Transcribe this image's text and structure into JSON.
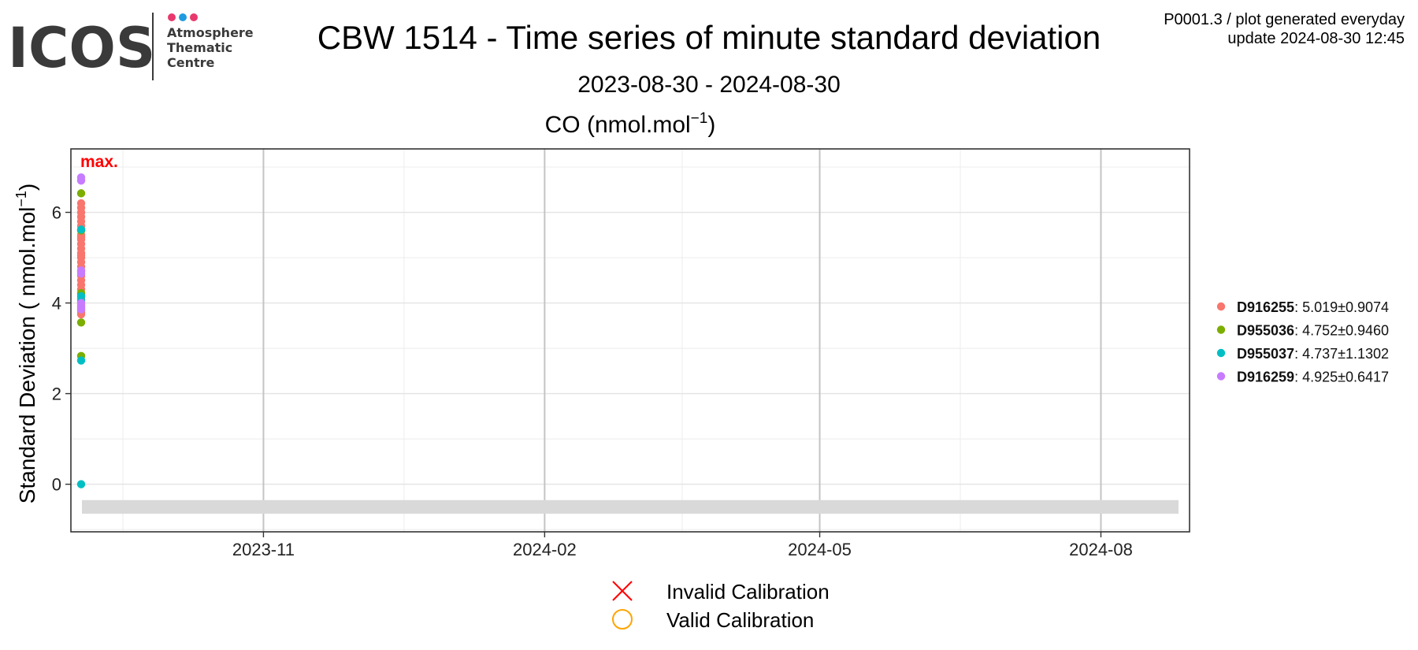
{
  "logo": {
    "wordmark": "ICOS",
    "lines": [
      "Atmosphere",
      "Thematic",
      "Centre"
    ],
    "dot_colors": [
      "#e8386d",
      "#1f9be0",
      "#e8386d"
    ],
    "wordmark_color": "#3a3a3a"
  },
  "header": {
    "title": "CBW 1514 - Time series of minute standard deviation",
    "date_range": "2023-08-30 - 2024-08-30",
    "info_line1": "P0001.3 / plot generated everyday",
    "info_line2": "update  2024-08-30 12:45"
  },
  "chart_data": {
    "type": "scatter",
    "title_base": "CO (nmol.mol",
    "title_sup": "−1",
    "title_close": ")",
    "ylabel_base": "Standard Deviation ( nmol.mol",
    "ylabel_sup": "−1",
    "ylabel_close": ")",
    "x_domain": [
      "2023-08-30",
      "2024-08-30"
    ],
    "y_domain": [
      -1.05,
      7.4
    ],
    "x_ticks": [
      "2023-11-01",
      "2024-02-01",
      "2024-05-01",
      "2024-08-01"
    ],
    "x_tick_labels": [
      "2023-11",
      "2024-02",
      "2024-05",
      "2024-08"
    ],
    "y_ticks": [
      0,
      2,
      4,
      6
    ],
    "y_tick_labels": [
      "0",
      "2",
      "4",
      "6"
    ],
    "grid": true,
    "max_annotation": "max.",
    "max_annotation_color": "#ff0000",
    "flag_band": {
      "x": [
        "2023-08-30",
        "2024-08-30"
      ],
      "y": [
        -0.65,
        -0.35
      ],
      "color": "#d9d9d9"
    },
    "series": [
      {
        "name": "D916255",
        "color": "#f8766d",
        "legend_text": ": 5.019±0.9074",
        "x": [
          "2023-08-30",
          "2023-08-30",
          "2023-08-30",
          "2023-08-30",
          "2023-08-30",
          "2023-08-30",
          "2023-08-30",
          "2023-08-30",
          "2023-08-30",
          "2023-08-30",
          "2023-08-30",
          "2023-08-30",
          "2023-08-30",
          "2023-08-30",
          "2023-08-30",
          "2023-08-30",
          "2023-08-30",
          "2023-08-30",
          "2023-08-30",
          "2023-08-30",
          "2023-08-30",
          "2023-08-30",
          "2023-08-30",
          "2023-08-30",
          "2023-08-30",
          "2023-08-30",
          "2023-08-30",
          "2023-08-30",
          "2023-08-30",
          "2023-08-30"
        ],
        "y": [
          6.2,
          6.1,
          6.0,
          5.9,
          5.8,
          5.7,
          5.6,
          5.5,
          5.4,
          5.3,
          5.2,
          5.1,
          5.0,
          4.9,
          4.8,
          4.7,
          4.6,
          4.5,
          4.4,
          4.3,
          4.2,
          4.1,
          4.0,
          3.95,
          3.9,
          3.85,
          3.8,
          3.75,
          5.45,
          5.05
        ]
      },
      {
        "name": "D955036",
        "color": "#7cae00",
        "legend_text": ": 4.752±0.9460",
        "x": [
          "2023-08-30",
          "2023-08-30",
          "2023-08-30",
          "2023-08-30",
          "2023-08-30"
        ],
        "y": [
          6.42,
          4.22,
          3.57,
          2.83,
          5.6
        ]
      },
      {
        "name": "D955037",
        "color": "#00bfc4",
        "legend_text": ": 4.737±1.1302",
        "x": [
          "2023-08-30",
          "2023-08-30",
          "2023-08-30",
          "2023-08-30",
          "2023-08-30"
        ],
        "y": [
          0.0,
          2.73,
          4.15,
          5.62,
          4.05
        ]
      },
      {
        "name": "D916259",
        "color": "#c77cff",
        "legend_text": ": 4.925±0.6417",
        "x": [
          "2023-08-30",
          "2023-08-30",
          "2023-08-30",
          "2023-08-30",
          "2023-08-30",
          "2023-08-30",
          "2023-08-30"
        ],
        "y": [
          6.77,
          6.7,
          4.72,
          4.65,
          4.0,
          3.92,
          3.86
        ]
      }
    ],
    "calibration_legend": [
      {
        "label": "Invalid Calibration",
        "symbol": "cross",
        "color": "#ff0000"
      },
      {
        "label": "Valid Calibration",
        "symbol": "circle",
        "color": "#ffa500"
      }
    ]
  }
}
